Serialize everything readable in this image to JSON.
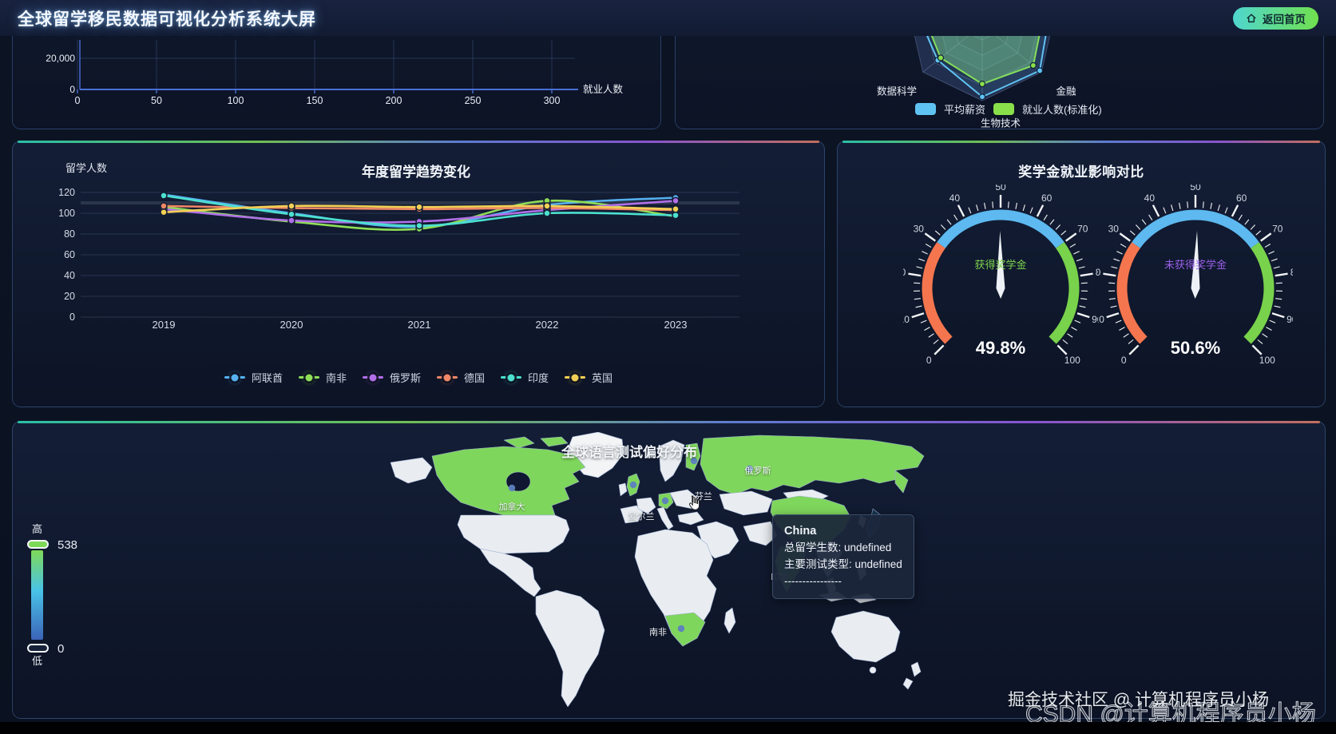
{
  "header": {
    "title": "全球留学移民数据可视化分析系统大屏",
    "back_button": "返回首页"
  },
  "employment_chart": {
    "axis_name": "就业人数",
    "y_ticks": [
      "20,000",
      "0"
    ],
    "x_ticks": [
      "0",
      "50",
      "100",
      "150",
      "200",
      "250",
      "300"
    ]
  },
  "radar_chart": {
    "visible_axis_labels": {
      "left": "数据科学",
      "right": "金融",
      "bottom": "生物技术"
    },
    "legend": [
      {
        "label": "平均薪资",
        "color": "#5fc3f2"
      },
      {
        "label": "就业人数(标准化)",
        "color": "#8ae04a"
      }
    ]
  },
  "chart_data": [
    {
      "type": "line",
      "title": "年度留学趋势变化",
      "ylabel": "留学人数",
      "x": [
        "2019",
        "2020",
        "2021",
        "2022",
        "2023"
      ],
      "ylim": [
        0,
        120
      ],
      "y_ticks": [
        0,
        20,
        40,
        60,
        80,
        100,
        120
      ],
      "legend_position": "bottom",
      "grid": true,
      "series": [
        {
          "name": "阿联酋",
          "color": "#56b1f0",
          "values": [
            118,
            100,
            87,
            108,
            115
          ]
        },
        {
          "name": "南非",
          "color": "#8ede57",
          "values": [
            106,
            92,
            85,
            112,
            97
          ]
        },
        {
          "name": "俄罗斯",
          "color": "#b16fe8",
          "values": [
            104,
            93,
            92,
            103,
            112
          ]
        },
        {
          "name": "德国",
          "color": "#f08767",
          "values": [
            107,
            105,
            104,
            105,
            103
          ]
        },
        {
          "name": "印度",
          "color": "#4ce0cf",
          "values": [
            117,
            99,
            88,
            100,
            98
          ]
        },
        {
          "name": "英国",
          "color": "#f3cf55",
          "values": [
            101,
            107,
            106,
            107,
            104
          ]
        }
      ]
    },
    {
      "type": "gauge",
      "title": "奖学金就业影响对比",
      "min": 0,
      "max": 100,
      "tick_labels": [
        "0",
        "10",
        "20",
        "30",
        "40",
        "50",
        "60",
        "70",
        "80",
        "90",
        "100"
      ],
      "band_colors": [
        {
          "upTo": 30,
          "color": "#f5764e"
        },
        {
          "upTo": 70,
          "color": "#5db9f0"
        },
        {
          "upTo": 100,
          "color": "#78d24b"
        }
      ],
      "gauges": [
        {
          "label": "获得奖学金",
          "label_color": "#7ed24d",
          "value": 49.8,
          "display": "49.8%"
        },
        {
          "label": "未获得奖学金",
          "label_color": "#9a5fe8",
          "value": 50.6,
          "display": "50.6%"
        }
      ]
    },
    {
      "type": "map",
      "title": "全球语言测试偏好分布",
      "visual_map": {
        "high_label": "高",
        "low_label": "低",
        "max": "538",
        "min": "0"
      },
      "labels": [
        {
          "name": "加拿大"
        },
        {
          "name": "俄罗斯"
        },
        {
          "name": "爱尔兰"
        },
        {
          "name": "芬兰"
        },
        {
          "name": "印度"
        },
        {
          "name": "南非"
        }
      ],
      "tooltip": {
        "country": "China",
        "rows": [
          "总留学生数: undefined",
          "主要测试类型: undefined",
          "----------------"
        ]
      }
    }
  ],
  "watermarks": {
    "line1": "掘金技术社区 @ 计算机程序员小杨",
    "line2": "CSDN @计算机程序员小杨"
  }
}
